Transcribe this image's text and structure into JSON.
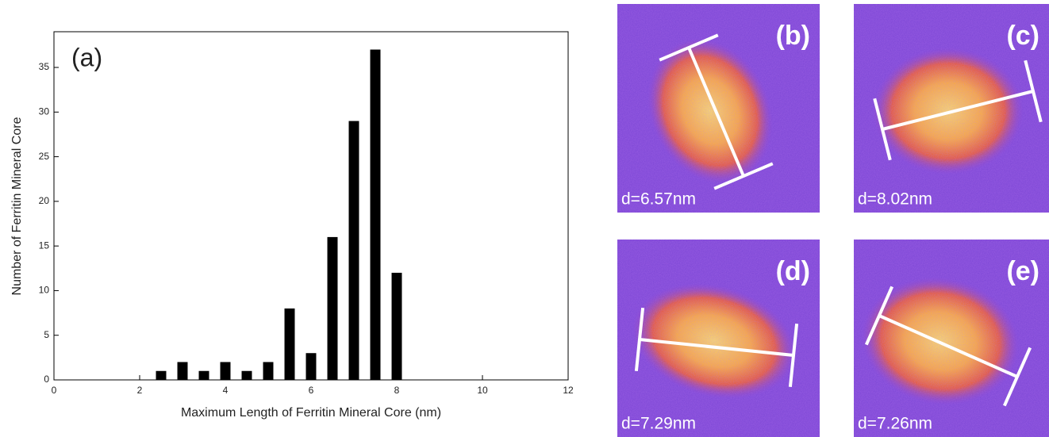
{
  "chart_data": {
    "type": "bar",
    "annotation": "(a)",
    "x_label": "Maximum Length of Ferritin Mineral Core (nm)",
    "y_label": "Number of Ferritin Mineral Core",
    "x": [
      2.5,
      3,
      3.5,
      4,
      4.5,
      5,
      5.5,
      6,
      6.5,
      7,
      7.5,
      8
    ],
    "values": [
      1,
      2,
      1,
      2,
      1,
      2,
      8,
      3,
      16,
      29,
      37,
      12
    ],
    "color": "#000000",
    "xlim": [
      0,
      12
    ],
    "xticks": [
      0,
      2,
      4,
      6,
      8,
      10,
      12
    ],
    "ylim": [
      0,
      39
    ],
    "yticks": [
      0,
      5,
      10,
      15,
      20,
      25,
      30,
      35
    ]
  },
  "panels": [
    {
      "label": "(b)",
      "caption": "d=6.57nm"
    },
    {
      "label": "(c)",
      "caption": "d=8.02nm"
    },
    {
      "label": "(d)",
      "caption": "d=7.29nm"
    },
    {
      "label": "(e)",
      "caption": "d=7.26nm"
    }
  ]
}
